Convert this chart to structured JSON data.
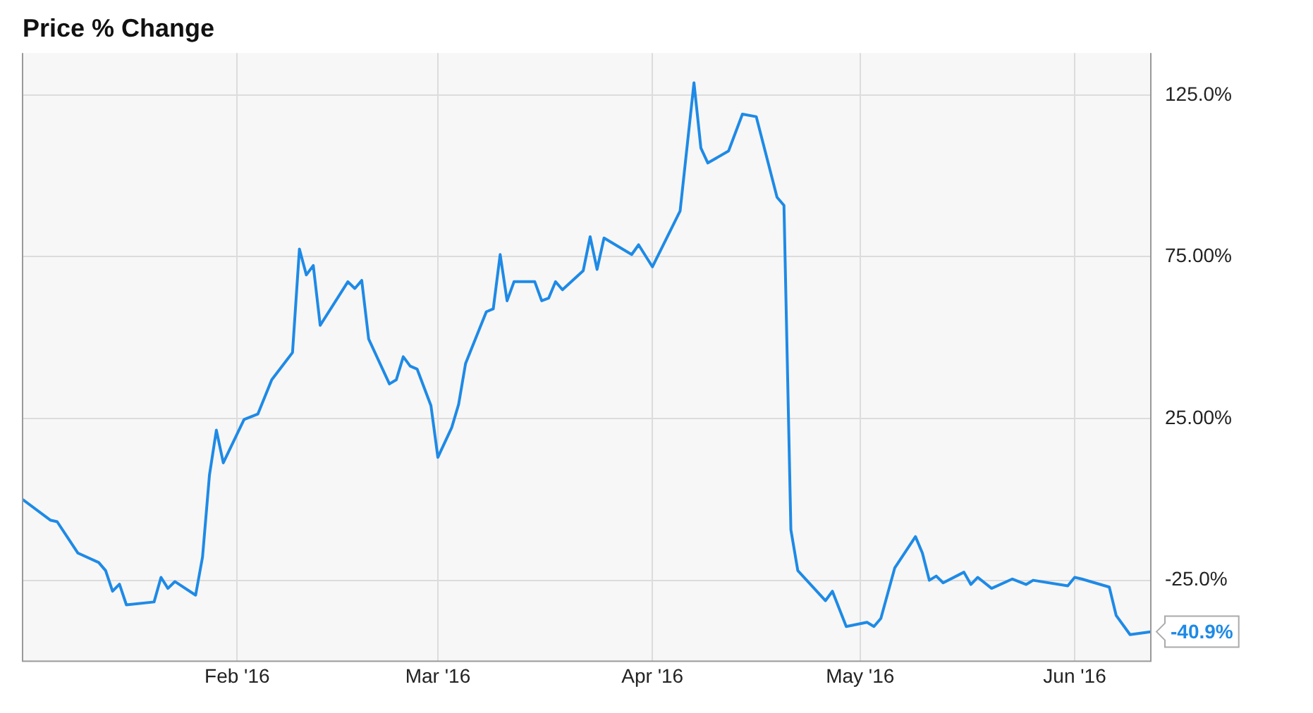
{
  "chart_data": {
    "type": "line",
    "title": "Price % Change",
    "x": [
      "2016-01-01",
      "2016-01-05",
      "2016-01-06",
      "2016-01-09",
      "2016-01-12",
      "2016-01-13",
      "2016-01-14",
      "2016-01-15",
      "2016-01-16",
      "2016-01-20",
      "2016-01-21",
      "2016-01-22",
      "2016-01-23",
      "2016-01-26",
      "2016-01-27",
      "2016-01-28",
      "2016-01-29",
      "2016-01-30",
      "2016-02-02",
      "2016-02-04",
      "2016-02-06",
      "2016-02-09",
      "2016-02-10",
      "2016-02-11",
      "2016-02-12",
      "2016-02-13",
      "2016-02-17",
      "2016-02-18",
      "2016-02-19",
      "2016-02-20",
      "2016-02-23",
      "2016-02-24",
      "2016-02-25",
      "2016-02-26",
      "2016-02-27",
      "2016-02-29",
      "2016-03-01",
      "2016-03-03",
      "2016-03-04",
      "2016-03-05",
      "2016-03-08",
      "2016-03-09",
      "2016-03-10",
      "2016-03-11",
      "2016-03-12",
      "2016-03-15",
      "2016-03-16",
      "2016-03-17",
      "2016-03-18",
      "2016-03-19",
      "2016-03-22",
      "2016-03-23",
      "2016-03-24",
      "2016-03-25",
      "2016-03-29",
      "2016-03-30",
      "2016-04-01",
      "2016-04-05",
      "2016-04-07",
      "2016-04-08",
      "2016-04-09",
      "2016-04-12",
      "2016-04-14",
      "2016-04-16",
      "2016-04-19",
      "2016-04-20",
      "2016-04-21",
      "2016-04-22",
      "2016-04-26",
      "2016-04-27",
      "2016-04-29",
      "2016-05-02",
      "2016-05-03",
      "2016-05-04",
      "2016-05-06",
      "2016-05-09",
      "2016-05-10",
      "2016-05-11",
      "2016-05-12",
      "2016-05-13",
      "2016-05-16",
      "2016-05-17",
      "2016-05-18",
      "2016-05-20",
      "2016-05-23",
      "2016-05-25",
      "2016-05-26",
      "2016-05-31",
      "2016-06-01",
      "2016-06-02",
      "2016-06-06",
      "2016-06-07",
      "2016-06-09",
      "2016-06-12"
    ],
    "series": [
      {
        "color": "#1e8ae6",
        "values": [
          0,
          -6.4,
          -6.9,
          -16.6,
          -19.5,
          -22,
          -28.4,
          -26.2,
          -32.6,
          -31.7,
          -24.1,
          -27.5,
          -25.4,
          -29.6,
          -17.8,
          7.5,
          21.4,
          11.3,
          24.7,
          26.4,
          37,
          45.4,
          77.4,
          69.4,
          72.3,
          53.8,
          67.3,
          65.2,
          67.7,
          49.6,
          35.7,
          37,
          44.1,
          41.2,
          40.3,
          29,
          13,
          22.2,
          29.4,
          42,
          58,
          58.9,
          75.7,
          61.4,
          67.3,
          67.3,
          61.4,
          62.2,
          67.3,
          64.8,
          70.7,
          81.2,
          71.1,
          80.8,
          75.7,
          78.7,
          71.9,
          89.2,
          128.8,
          108.6,
          104,
          107.7,
          119.1,
          118.3,
          93.4,
          90.9,
          -9.4,
          -22,
          -31.3,
          -28.4,
          -39.3,
          -38,
          -39.3,
          -36.8,
          -21.2,
          -11.5,
          -16.6,
          -25,
          -23.7,
          -25.8,
          -22.5,
          -26.3,
          -24.1,
          -27.5,
          -24.6,
          -26.3,
          -25,
          -26.7,
          -24.1,
          -24.6,
          -27.1,
          -35.9,
          -41.8,
          -40.9
        ]
      }
    ],
    "xlim": [
      "2016-01-01",
      "2016-06-12"
    ],
    "xticks": [
      {
        "value": "2016-02-01",
        "label": "Feb '16"
      },
      {
        "value": "2016-03-01",
        "label": "Mar '16"
      },
      {
        "value": "2016-04-01",
        "label": "Apr '16"
      },
      {
        "value": "2016-05-01",
        "label": "May '16"
      },
      {
        "value": "2016-06-01",
        "label": "Jun '16"
      }
    ],
    "ylim": [
      -50,
      138
    ],
    "yticks": [
      {
        "value": 125,
        "label": "125.0%"
      },
      {
        "value": 75,
        "label": "75.00%"
      },
      {
        "value": 25,
        "label": "25.00%"
      },
      {
        "value": -25,
        "label": "-25.0%"
      }
    ],
    "annotations": [
      {
        "text": "-40.9%",
        "x": "2016-06-12",
        "y": -40.9
      }
    ],
    "grid": true,
    "legend": false,
    "marker": "none",
    "line_style": "solid"
  }
}
